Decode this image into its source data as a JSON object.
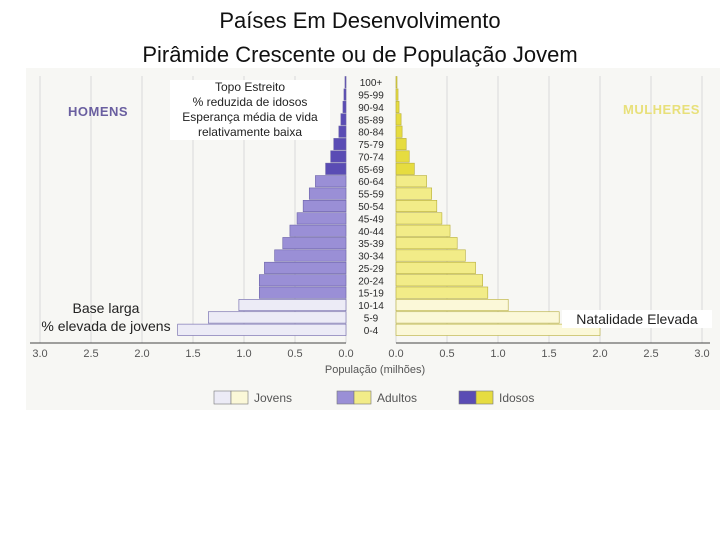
{
  "titles": {
    "line1": "Países Em Desenvolvimento",
    "line2": "Pirâmide Crescente ou de População Jovem"
  },
  "annotations": {
    "top": [
      "Topo Estreito",
      "% reduzida de idosos",
      "Esperança média de vida",
      "relativamente baixa"
    ],
    "base": [
      "Base larga",
      "% elevada de jovens"
    ],
    "natality": "Natalidade Elevada"
  },
  "chart_data": {
    "type": "bar",
    "orientation": "horizontal-population-pyramid",
    "side_labels": {
      "left": "HOMENS",
      "right": "MULHERES"
    },
    "xlabel": "População (milhões)",
    "xlim": [
      0,
      3.0
    ],
    "x_ticks": [
      "3.0",
      "2.5",
      "2.0",
      "1.5",
      "1.0",
      "0.5",
      "0.0",
      "0.0",
      "0.5",
      "1.0",
      "1.5",
      "2.0",
      "2.5",
      "3.0"
    ],
    "categories": [
      "0-4",
      "5-9",
      "10-14",
      "15-19",
      "20-24",
      "25-29",
      "30-34",
      "35-39",
      "40-44",
      "45-49",
      "50-54",
      "55-59",
      "60-64",
      "65-69",
      "70-74",
      "75-79",
      "80-84",
      "85-89",
      "90-94",
      "95-99",
      "100+"
    ],
    "series": [
      {
        "name": "HOMENS",
        "values": [
          1.65,
          1.35,
          1.05,
          0.85,
          0.85,
          0.8,
          0.7,
          0.62,
          0.55,
          0.48,
          0.42,
          0.36,
          0.3,
          0.2,
          0.15,
          0.12,
          0.07,
          0.05,
          0.03,
          0.02,
          0.01
        ]
      },
      {
        "name": "MULHERES",
        "values": [
          2.0,
          1.6,
          1.1,
          0.9,
          0.85,
          0.78,
          0.68,
          0.6,
          0.53,
          0.45,
          0.4,
          0.35,
          0.3,
          0.18,
          0.13,
          0.1,
          0.06,
          0.05,
          0.03,
          0.02,
          0.01
        ]
      }
    ],
    "legend": {
      "position": "bottom",
      "entries": [
        "Jovens",
        "Adultos",
        "Idosos"
      ]
    },
    "colors": {
      "men_jovens": "#ecebf6",
      "men_adultos": "#9a8fd6",
      "men_idosos": "#5a4cb4",
      "women_jovens": "#fbf8d8",
      "women_adultos": "#f2ec88",
      "women_idosos": "#e6dc40",
      "grid": "#dadada"
    }
  }
}
